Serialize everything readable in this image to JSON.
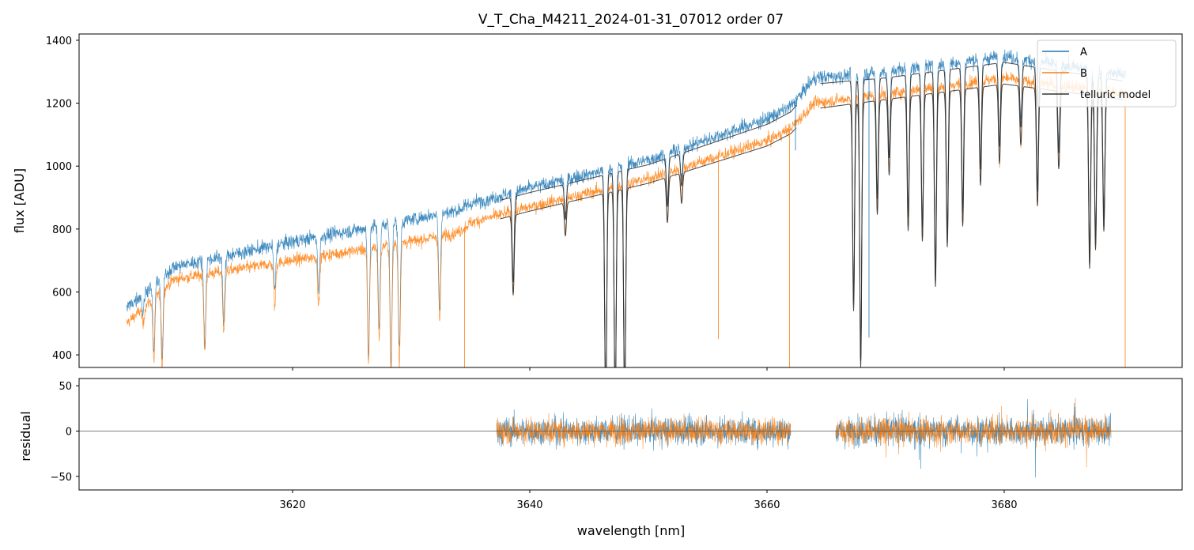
{
  "colors": {
    "A": "#1f77b4",
    "B": "#ff7f0e",
    "telluric model": "#333333",
    "zero_line": "#555555"
  },
  "chart_data": [
    {
      "id": "spectrum",
      "type": "line",
      "title": "V_T_Cha_M4211_2024-01-31_07012  order 07",
      "xlabel": "",
      "ylabel": "flux [ADU]",
      "xlim": [
        3602,
        3695
      ],
      "ylim": [
        360,
        1420
      ],
      "yticks": [
        400,
        600,
        800,
        1000,
        1200,
        1400
      ],
      "xticks": [
        3620,
        3640,
        3660,
        3680
      ],
      "show_xticklabels": false,
      "legend": {
        "position": "top-right",
        "entries": [
          "A",
          "B",
          "telluric model"
        ]
      },
      "continuum_A": {
        "x": [
          3606,
          3610,
          3620,
          3630,
          3634,
          3635,
          3640,
          3650,
          3660,
          3662,
          3664,
          3670,
          3680,
          3690
        ],
        "y": [
          550,
          680,
          760,
          830,
          860,
          880,
          930,
          1020,
          1150,
          1190,
          1280,
          1300,
          1350,
          1290
        ]
      },
      "continuum_B": {
        "x": [
          3606,
          3610,
          3620,
          3630,
          3634,
          3635,
          3640,
          3650,
          3660,
          3662,
          3664,
          3670,
          3680,
          3690
        ],
        "y": [
          500,
          640,
          700,
          760,
          790,
          820,
          870,
          960,
          1080,
          1120,
          1200,
          1230,
          1280,
          1230
        ]
      },
      "absorption_lines": [
        {
          "x": 3607.4,
          "depth": 0.1
        },
        {
          "x": 3608.3,
          "depth": 0.35
        },
        {
          "x": 3609.0,
          "depth": 0.4
        },
        {
          "x": 3612.6,
          "depth": 0.38
        },
        {
          "x": 3614.2,
          "depth": 0.3
        },
        {
          "x": 3618.5,
          "depth": 0.2
        },
        {
          "x": 3622.2,
          "depth": 0.22
        },
        {
          "x": 3626.4,
          "depth": 0.5
        },
        {
          "x": 3627.3,
          "depth": 0.4
        },
        {
          "x": 3628.3,
          "depth": 0.55
        },
        {
          "x": 3629.0,
          "depth": 0.5
        },
        {
          "x": 3632.4,
          "depth": 0.35
        },
        {
          "x": 3638.6,
          "depth": 0.3
        },
        {
          "x": 3643.0,
          "depth": 0.12
        },
        {
          "x": 3646.4,
          "depth": 0.75
        },
        {
          "x": 3647.2,
          "depth": 0.75
        },
        {
          "x": 3648.0,
          "depth": 0.75
        },
        {
          "x": 3651.6,
          "depth": 0.15
        },
        {
          "x": 3652.8,
          "depth": 0.1
        },
        {
          "x": 3667.3,
          "depth": 0.55
        },
        {
          "x": 3667.9,
          "depth": 0.7
        },
        {
          "x": 3669.3,
          "depth": 0.3
        },
        {
          "x": 3670.3,
          "depth": 0.2
        },
        {
          "x": 3671.9,
          "depth": 0.35
        },
        {
          "x": 3673.1,
          "depth": 0.38
        },
        {
          "x": 3674.2,
          "depth": 0.5
        },
        {
          "x": 3675.2,
          "depth": 0.4
        },
        {
          "x": 3676.5,
          "depth": 0.35
        },
        {
          "x": 3678.0,
          "depth": 0.25
        },
        {
          "x": 3679.6,
          "depth": 0.2
        },
        {
          "x": 3681.4,
          "depth": 0.15
        },
        {
          "x": 3682.8,
          "depth": 0.3
        },
        {
          "x": 3684.6,
          "depth": 0.2
        },
        {
          "x": 3687.2,
          "depth": 0.45
        },
        {
          "x": 3687.7,
          "depth": 0.4
        },
        {
          "x": 3688.4,
          "depth": 0.35
        }
      ],
      "spikes": [
        {
          "x": 3634.5,
          "series": "B",
          "to": 360
        },
        {
          "x": 3655.9,
          "series": "B",
          "to": 450
        },
        {
          "x": 3661.9,
          "series": "B",
          "to": 360
        },
        {
          "x": 3662.4,
          "series": "A",
          "to": 1050
        },
        {
          "x": 3668.6,
          "series": "A",
          "to": 455
        },
        {
          "x": 3690.2,
          "series": "B",
          "to": 360
        }
      ],
      "telluric_range": [
        3637.5,
        3690
      ],
      "telluric_gap": [
        3662.5,
        3664.5
      ]
    },
    {
      "id": "residual",
      "type": "line",
      "title": "",
      "xlabel": "wavelength [nm]",
      "ylabel": "residual",
      "xlim": [
        3602,
        3695
      ],
      "ylim": [
        -65,
        58
      ],
      "yticks": [
        -50,
        0,
        50
      ],
      "xticks": [
        3620,
        3640,
        3660,
        3680
      ],
      "segments": [
        [
          3637.2,
          3662.0
        ],
        [
          3665.8,
          3689.0
        ]
      ],
      "noise_sigma": {
        "A": 20,
        "B": 18
      }
    }
  ],
  "axis_tick_labels": {
    "x": [
      "3620",
      "3640",
      "3660",
      "3680"
    ],
    "spectrum_y": [
      "400",
      "600",
      "800",
      "1000",
      "1200",
      "1400"
    ],
    "residual_y": [
      "−50",
      "0",
      "50"
    ]
  }
}
